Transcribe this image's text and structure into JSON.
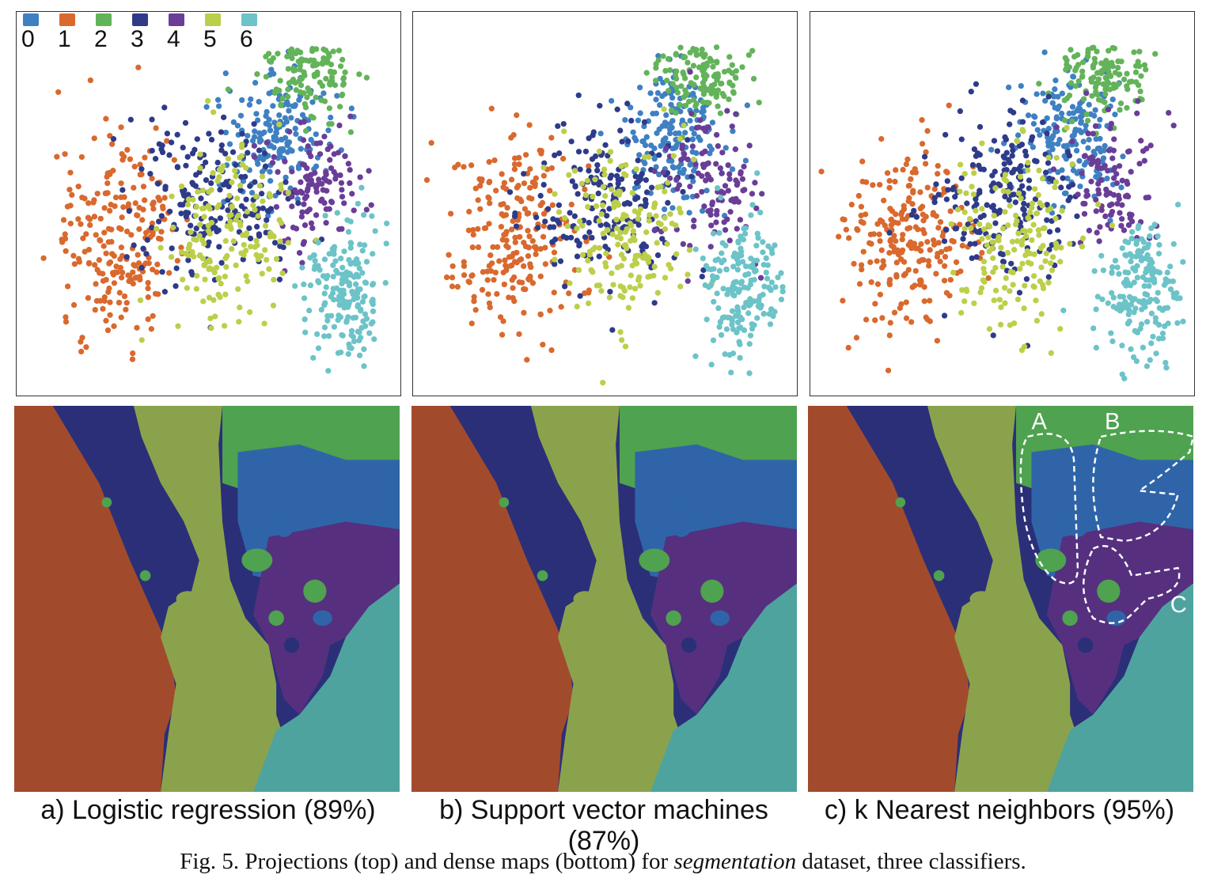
{
  "legend": {
    "classes": [
      {
        "label": "0",
        "color": "#3f80c2"
      },
      {
        "label": "1",
        "color": "#d9692e"
      },
      {
        "label": "2",
        "color": "#63b35a"
      },
      {
        "label": "3",
        "color": "#2e3b8a"
      },
      {
        "label": "4",
        "color": "#6a3d98"
      },
      {
        "label": "5",
        "color": "#bccf4a"
      },
      {
        "label": "6",
        "color": "#6cc3c8"
      }
    ]
  },
  "dense_map_colors": {
    "0": "#2f65a8",
    "1": "#a24b2c",
    "2": "#4fa24f",
    "3": "#2b2f78",
    "4": "#56307f",
    "5": "#8ba24c",
    "6": "#4ea39f"
  },
  "panels": [
    {
      "label": "a) Logistic regression (89%)"
    },
    {
      "label": "b) Support vector machines (87%)"
    },
    {
      "label": "c) k Nearest neighbors (95%)",
      "annotations": [
        "A",
        "B",
        "C"
      ]
    }
  ],
  "caption": {
    "prefix": "Fig. 5.  Projections (top) and dense maps (bottom) for ",
    "italic": "segmentation",
    "suffix": " dataset, three classifiers."
  }
}
